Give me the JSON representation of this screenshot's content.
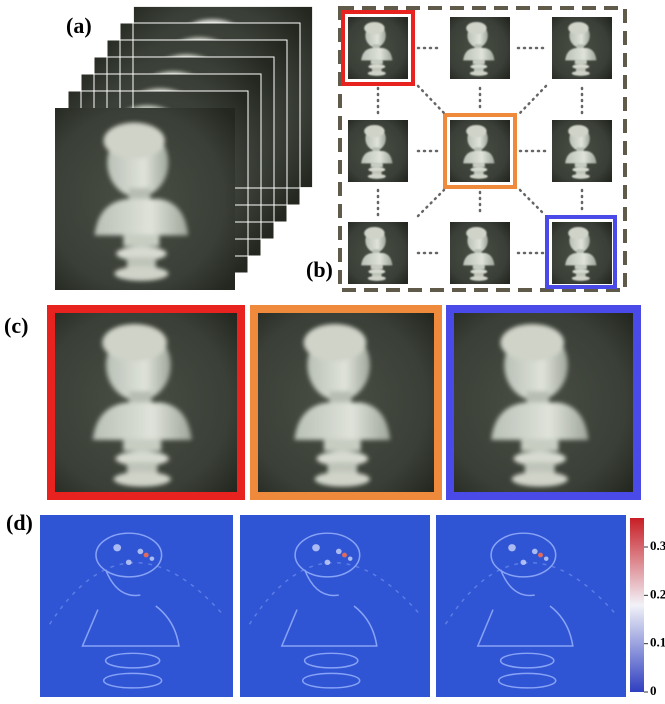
{
  "panels": {
    "a": "(a)",
    "b": "(b)",
    "c": "(c)",
    "d": "(d)"
  },
  "colorbar": {
    "range": [
      0,
      0.36
    ],
    "ticks": [
      0,
      0.1,
      0.2,
      0.3
    ]
  }
}
